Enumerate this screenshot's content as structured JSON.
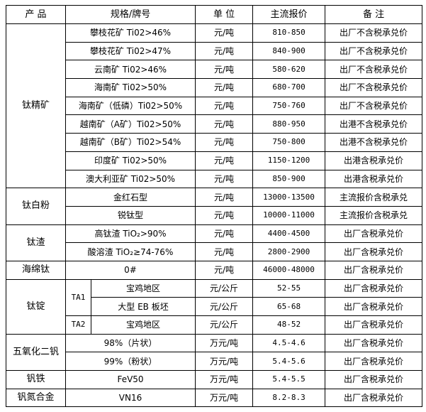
{
  "headers": {
    "product": "产 品",
    "spec": "规格/牌号",
    "unit": "单 位",
    "price": "主流报价",
    "note": "备 注"
  },
  "groups": {
    "titanium_concentrate": {
      "name": "钛精矿",
      "rows": [
        {
          "spec": "攀枝花矿 Ti02>46%",
          "unit": "元/吨",
          "price": "810-850",
          "note": "出厂不含税承兑价"
        },
        {
          "spec": "攀枝花矿 Ti02>47%",
          "unit": "元/吨",
          "price": "840-900",
          "note": "出厂不含税承兑价"
        },
        {
          "spec": "云南矿 Ti02>46%",
          "unit": "元/吨",
          "price": "580-620",
          "note": "出厂不含税承兑价"
        },
        {
          "spec": "海南矿 Ti02>50%",
          "unit": "元/吨",
          "price": "680-700",
          "note": "出厂不含税承兑价"
        },
        {
          "spec": "海南矿（低磷）Ti02>50%",
          "unit": "元/吨",
          "price": "750-760",
          "note": "出厂不含税承兑价"
        },
        {
          "spec": "越南矿（A矿）Ti02>50%",
          "unit": "元/吨",
          "price": "880-950",
          "note": "出港不含税承兑价"
        },
        {
          "spec": "越南矿（B矿）Ti02>54%",
          "unit": "元/吨",
          "price": "750-800",
          "note": "出港不含税承兑价"
        },
        {
          "spec": "印度矿 Ti02>50%",
          "unit": "元/吨",
          "price": "1150-1200",
          "note": "出港含税承兑价"
        },
        {
          "spec": "澳大利亚矿 Ti02>50%",
          "unit": "元/吨",
          "price": "850-900",
          "note": "出港含税承兑价"
        }
      ]
    },
    "titanium_dioxide": {
      "name": "钛白粉",
      "rows": [
        {
          "spec": "金红石型",
          "unit": "元/吨",
          "price": "13000-13500",
          "note": "主流报价含税承兑"
        },
        {
          "spec": "锐钛型",
          "unit": "元/吨",
          "price": "10000-11000",
          "note": "主流报价含税承兑"
        }
      ]
    },
    "titanium_slag": {
      "name": "钛渣",
      "rows": [
        {
          "spec": "高钛渣 TiO₂>90%",
          "unit": "元/吨",
          "price": "4400-4500",
          "note": "出厂含税承兑价"
        },
        {
          "spec": "酸溶渣 TiO₂≥74-76%",
          "unit": "元/吨",
          "price": "2800-2900",
          "note": "出厂含税承兑价"
        }
      ]
    },
    "titanium_sponge": {
      "name": "海绵钛",
      "rows": [
        {
          "spec": "0#",
          "unit": "元/吨",
          "price": "46000-48000",
          "note": "出厂含税承兑价"
        }
      ]
    },
    "titanium_ingot": {
      "name": "钛锭",
      "grades": [
        "TA1",
        "TA2"
      ],
      "rows": [
        {
          "spec": "宝鸡地区",
          "unit": "元/公斤",
          "price": "52-55",
          "note": "出厂含税承兑价"
        },
        {
          "spec": "大型 EB 板坯",
          "unit": "元/公斤",
          "price": "65-68",
          "note": "出厂含税承兑价"
        },
        {
          "spec": "宝鸡地区",
          "unit": "元/公斤",
          "price": "48-52",
          "note": "出厂含税承兑价"
        }
      ]
    },
    "vanadium_pentoxide": {
      "name": "五氧化二钒",
      "rows": [
        {
          "spec": "98%（片状）",
          "unit": "万元/吨",
          "price": "4.5-4.6",
          "note": "出厂含税承兑价"
        },
        {
          "spec": "99%（粉状）",
          "unit": "万元/吨",
          "price": "5.4-5.6",
          "note": "出厂含税承兑价"
        }
      ]
    },
    "ferrovanadium": {
      "name": "钒铁",
      "rows": [
        {
          "spec": "FeV50",
          "unit": "万元/吨",
          "price": "5.4-5.5",
          "note": "出厂含税承兑价"
        }
      ]
    },
    "vanadium_nitrogen": {
      "name": "钒氮合金",
      "rows": [
        {
          "spec": "VN16",
          "unit": "万元/吨",
          "price": "8.2-8.3",
          "note": "出厂含税承兑价"
        }
      ]
    }
  }
}
